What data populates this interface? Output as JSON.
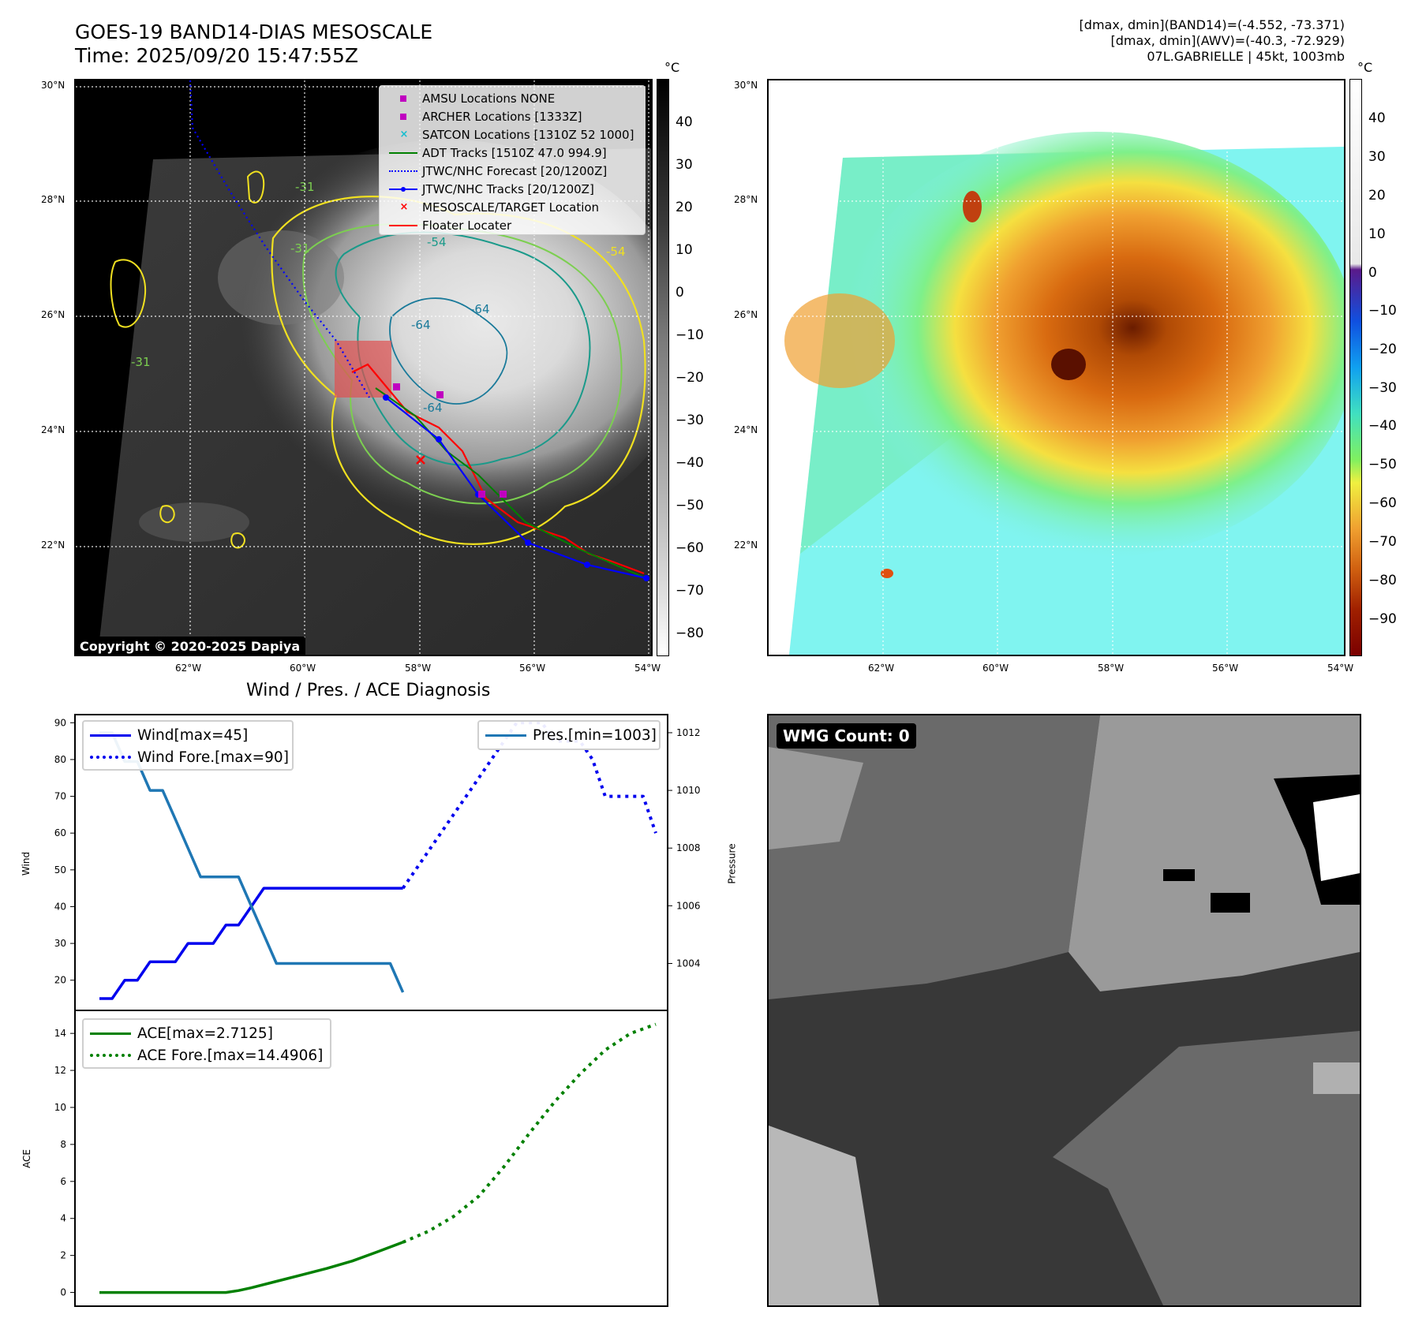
{
  "top_left": {
    "title_line1": "GOES-19 BAND14-DIAS MESOSCALE",
    "title_line2": "Time: 2025/09/20 15:47:55Z",
    "colorbar_unit": "°C",
    "colorbar_ticks": [
      "40",
      "30",
      "20",
      "10",
      "0",
      "−10",
      "−20",
      "−30",
      "−40",
      "−50",
      "−60",
      "−70",
      "−80"
    ],
    "lat_labels": [
      "30°N",
      "28°N",
      "26°N",
      "24°N",
      "22°N"
    ],
    "lon_labels": [
      "62°W",
      "60°W",
      "58°W",
      "56°W",
      "54°W"
    ],
    "copyright": "Copyright © 2020-2025 Dapiya",
    "contour_labels": [
      "-31",
      "-54",
      "-64",
      "-31",
      "-54",
      "-64",
      "-64",
      "-31"
    ],
    "legend": [
      {
        "label": "AMSU Locations NONE",
        "color": "#c000c0",
        "marker": "square"
      },
      {
        "label": "ARCHER Locations [1333Z]",
        "color": "#c000c0",
        "marker": "square"
      },
      {
        "label": "SATCON Locations [1310Z 52 1000]",
        "color": "#17becf",
        "marker": "x"
      },
      {
        "label": "ADT Tracks [1510Z 47.0 994.9]",
        "color": "#008000",
        "marker": "line"
      },
      {
        "label": "JTWC/NHC Forecast [20/1200Z]",
        "color": "#0000ff",
        "marker": "dotted"
      },
      {
        "label": "JTWC/NHC Tracks [20/1200Z]",
        "color": "#0000ff",
        "marker": "line-dot"
      },
      {
        "label": "MESOSCALE/TARGET Location",
        "color": "#ff0000",
        "marker": "x"
      },
      {
        "label": "Floater Locater",
        "color": "#ff0000",
        "marker": "line"
      }
    ]
  },
  "top_right": {
    "info_line1": "[dmax, dmin](BAND14)=(-4.552, -73.371)",
    "info_line2": "[dmax, dmin](AWV)=(-40.3, -72.929)",
    "info_line3": "07L.GABRIELLE | 45kt, 1003mb",
    "colorbar_unit": "°C",
    "colorbar_ticks": [
      "40",
      "30",
      "20",
      "10",
      "0",
      "−10",
      "−20",
      "−30",
      "−40",
      "−50",
      "−60",
      "−70",
      "−80",
      "−90"
    ],
    "lat_labels": [
      "30°N",
      "28°N",
      "26°N",
      "24°N",
      "22°N"
    ],
    "lon_labels": [
      "62°W",
      "60°W",
      "58°W",
      "56°W",
      "54°W"
    ]
  },
  "bottom_left": {
    "title": "Wind / Pres. / ACE Diagnosis",
    "legend_wind": "Wind[max=45]",
    "legend_wind_fore": "Wind Fore.[max=90]",
    "legend_pres": "Pres.[min=1003]",
    "legend_ace": "ACE[max=2.7125]",
    "legend_ace_fore": "ACE Fore.[max=14.4906]",
    "ylabel_wind": "Wind",
    "ylabel_pres": "Pressure",
    "ylabel_ace": "ACE"
  },
  "bottom_right": {
    "wmg_count": "WMG Count: 0"
  },
  "chart_data": [
    {
      "type": "line",
      "title": "Wind / Pres. / ACE Diagnosis",
      "ylabel": "Wind",
      "ylim": [
        12,
        92
      ],
      "yticks": [
        20,
        30,
        40,
        50,
        60,
        70,
        80,
        90
      ],
      "xlim": [
        -2,
        45
      ],
      "series": [
        {
          "name": "Wind[max=45]",
          "color": "#0000ee",
          "style": "solid",
          "x": [
            0,
            1,
            2,
            3,
            4,
            5,
            6,
            7,
            8,
            9,
            10,
            11,
            12,
            13,
            14,
            15,
            16,
            17,
            18,
            19,
            20,
            21,
            22,
            23,
            24
          ],
          "values": [
            15,
            15,
            20,
            20,
            25,
            25,
            25,
            30,
            30,
            30,
            35,
            35,
            40,
            45,
            45,
            45,
            45,
            45,
            45,
            45,
            45,
            45,
            45,
            45,
            45
          ]
        },
        {
          "name": "Wind Fore.[max=90]",
          "color": "#0000ee",
          "style": "dotted",
          "x": [
            24,
            25,
            26,
            27,
            28,
            29,
            30,
            31,
            32,
            33,
            34,
            35,
            36,
            37,
            38,
            39,
            40,
            41,
            42,
            43,
            44
          ],
          "values": [
            45,
            50,
            55,
            60,
            65,
            70,
            75,
            80,
            85,
            90,
            90,
            90,
            85,
            85,
            85,
            80,
            70,
            70,
            70,
            70,
            60
          ]
        }
      ]
    },
    {
      "type": "line",
      "ylabel": "Pressure",
      "ylim": [
        1002.4,
        1012.6
      ],
      "yticks": [
        1004,
        1006,
        1008,
        1010,
        1012
      ],
      "xlim": [
        -2,
        45
      ],
      "series": [
        {
          "name": "Pres.[min=1003]",
          "color": "#1f77b4",
          "style": "solid",
          "x": [
            0,
            1,
            2,
            3,
            4,
            5,
            6,
            7,
            8,
            9,
            10,
            11,
            12,
            13,
            14,
            15,
            16,
            17,
            18,
            19,
            20,
            21,
            22,
            23,
            24
          ],
          "values": [
            1012,
            1012,
            1011,
            1011,
            1010,
            1010,
            1009,
            1008,
            1007,
            1007,
            1007,
            1007,
            1006,
            1005,
            1004,
            1004,
            1004,
            1004,
            1004,
            1004,
            1004,
            1004,
            1004,
            1004,
            1003
          ]
        }
      ]
    },
    {
      "type": "line",
      "ylabel": "ACE",
      "ylim": [
        -0.7,
        15.2
      ],
      "yticks": [
        0,
        2,
        4,
        6,
        8,
        10,
        12,
        14
      ],
      "xlim": [
        -2,
        45
      ],
      "series": [
        {
          "name": "ACE[max=2.7125]",
          "color": "#008000",
          "style": "solid",
          "x": [
            0,
            2,
            4,
            6,
            8,
            10,
            11,
            12,
            14,
            16,
            18,
            20,
            22,
            24
          ],
          "values": [
            0,
            0,
            0,
            0,
            0,
            0,
            0.1,
            0.25,
            0.6,
            0.95,
            1.3,
            1.7,
            2.2,
            2.7125
          ]
        },
        {
          "name": "ACE Fore.[max=14.4906]",
          "color": "#008000",
          "style": "dotted",
          "x": [
            24,
            26,
            28,
            30,
            32,
            34,
            36,
            38,
            40,
            42,
            44
          ],
          "values": [
            2.7125,
            3.3,
            4.1,
            5.2,
            6.8,
            8.6,
            10.3,
            11.8,
            13.1,
            14.0,
            14.4906
          ]
        }
      ]
    }
  ]
}
